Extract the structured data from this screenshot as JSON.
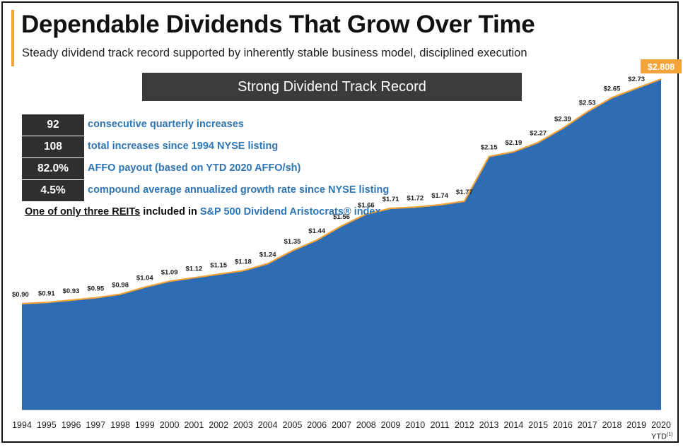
{
  "header": {
    "title": "Dependable Dividends That Grow Over Time",
    "subtitle": "Steady dividend track record supported by inherently stable business model, disciplined execution"
  },
  "banner": {
    "label": "Strong Dividend Track Record"
  },
  "stats": [
    {
      "value": "92",
      "label": "consecutive quarterly increases"
    },
    {
      "value": "108",
      "label": "total increases since 1994 NYSE listing"
    },
    {
      "value": "82.0%",
      "label": "AFFO payout (based on YTD 2020 AFFO/sh)"
    },
    {
      "value": "4.5%",
      "label": "compound average annualized growth rate since NYSE listing"
    }
  ],
  "aristocrats": {
    "part1": "One of only three REITs",
    "part2": " included in ",
    "part3": "S&P 500 Dividend Aristocrats® index"
  },
  "ytd_note": {
    "label": "YTD",
    "sup": "(1)"
  },
  "colors": {
    "area": "#2e6db4",
    "line": "#f2a33a",
    "highlight": "#f2a33a",
    "dark": "#2f2f2f",
    "blue_text": "#2e75b6"
  },
  "chart_data": {
    "type": "area",
    "title": "Strong Dividend Track Record",
    "xlabel": "",
    "ylabel": "",
    "categories": [
      "1994",
      "1995",
      "1996",
      "1997",
      "1998",
      "1999",
      "2000",
      "2001",
      "2002",
      "2003",
      "2004",
      "2005",
      "2006",
      "2007",
      "2008",
      "2009",
      "2010",
      "2011",
      "2012",
      "2013",
      "2014",
      "2015",
      "2016",
      "2017",
      "2018",
      "2019",
      "2020"
    ],
    "values": [
      0.9,
      0.91,
      0.93,
      0.95,
      0.98,
      1.04,
      1.09,
      1.12,
      1.15,
      1.18,
      1.24,
      1.35,
      1.44,
      1.56,
      1.66,
      1.71,
      1.72,
      1.74,
      1.77,
      2.15,
      2.19,
      2.27,
      2.39,
      2.53,
      2.65,
      2.73,
      2.808
    ],
    "value_labels": [
      "$0.90",
      "$0.91",
      "$0.93",
      "$0.95",
      "$0.98",
      "$1.04",
      "$1.09",
      "$1.12",
      "$1.15",
      "$1.18",
      "$1.24",
      "$1.35",
      "$1.44",
      "$1.56",
      "$1.66",
      "$1.71",
      "$1.72",
      "$1.74",
      "$1.77",
      "$2.15",
      "$2.19",
      "$2.27",
      "$2.39",
      "$2.53",
      "$2.65",
      "$2.73",
      "$2.808"
    ],
    "highlight_index": 26,
    "ylim": [
      0,
      3.0
    ]
  }
}
